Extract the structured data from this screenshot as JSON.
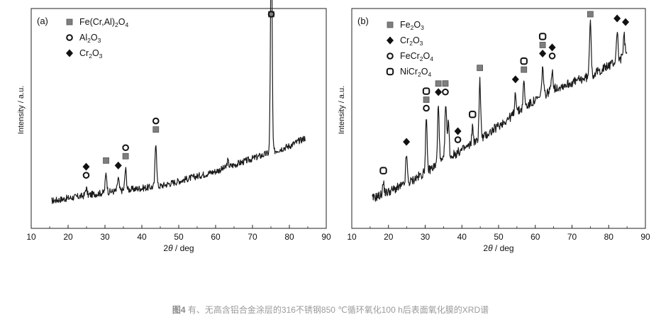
{
  "chart_data": [
    {
      "type": "line",
      "panel_label": "(a)",
      "xlabel_prefix": "2",
      "xlabel_theta": "θ",
      "xlabel_suffix": " / deg",
      "ylabel": "Intensity / a.u.",
      "xlim": [
        10,
        90
      ],
      "ylim": [
        0,
        100
      ],
      "x_ticks": [
        10,
        20,
        30,
        40,
        50,
        60,
        70,
        80,
        90
      ],
      "legend": [
        {
          "symbol": "square",
          "parts": [
            [
              "Fe(Cr,Al)",
              ""
            ],
            [
              "2",
              "sub"
            ],
            [
              "O",
              ""
            ],
            [
              "4",
              "sub"
            ]
          ]
        },
        {
          "symbol": "ring",
          "parts": [
            [
              "Al",
              ""
            ],
            [
              "2",
              "sub"
            ],
            [
              "O",
              ""
            ],
            [
              "3",
              "sub"
            ]
          ]
        },
        {
          "symbol": "diamond",
          "parts": [
            [
              "Cr",
              ""
            ],
            [
              "2",
              "sub"
            ],
            [
              "O",
              ""
            ],
            [
              "3",
              "sub"
            ]
          ]
        }
      ],
      "series": [
        {
          "name": "XRD pattern (a)",
          "x_start": 15.5,
          "x_end": 84.5,
          "baseline": [
            [
              15.5,
              11
            ],
            [
              30,
              15
            ],
            [
              45,
              18
            ],
            [
              60,
              25
            ],
            [
              70,
              31
            ],
            [
              80,
              37
            ],
            [
              84.5,
              41
            ]
          ],
          "noise_amplitude": 1.6,
          "peaks": [
            [
              24.9,
              3.5
            ],
            [
              30.3,
              9
            ],
            [
              33.6,
              6
            ],
            [
              35.6,
              10
            ],
            [
              43.8,
              21
            ],
            [
              63.3,
              3
            ],
            [
              75.1,
              106
            ]
          ]
        }
      ],
      "markers": [
        {
          "x": 24.9,
          "symbols": [
            "ring",
            "diamond"
          ]
        },
        {
          "x": 30.3,
          "symbols": [
            "square"
          ]
        },
        {
          "x": 33.6,
          "symbols": [
            "diamond"
          ]
        },
        {
          "x": 35.6,
          "symbols": [
            "square",
            "ring"
          ]
        },
        {
          "x": 43.8,
          "symbols": [
            "square",
            "ring"
          ]
        },
        {
          "x": 75.1,
          "symbols": [
            "square",
            "ring"
          ]
        }
      ]
    },
    {
      "type": "line",
      "panel_label": "(b)",
      "xlabel_prefix": "2",
      "xlabel_theta": "θ",
      "xlabel_suffix": " / deg",
      "ylabel": "Intensity / a.u.",
      "xlim": [
        10,
        90
      ],
      "ylim": [
        0,
        100
      ],
      "x_ticks": [
        10,
        20,
        30,
        40,
        50,
        60,
        70,
        80,
        90
      ],
      "legend": [
        {
          "symbol": "square",
          "parts": [
            [
              "Fe",
              ""
            ],
            [
              "2",
              "sub"
            ],
            [
              "O",
              ""
            ],
            [
              "3",
              "sub"
            ]
          ]
        },
        {
          "symbol": "diamond",
          "parts": [
            [
              "Cr",
              ""
            ],
            [
              "2",
              "sub"
            ],
            [
              "O",
              ""
            ],
            [
              "3",
              "sub"
            ]
          ]
        },
        {
          "symbol": "ring",
          "parts": [
            [
              "FeCr",
              ""
            ],
            [
              "2",
              "sub"
            ],
            [
              "O",
              ""
            ],
            [
              "4",
              "sub"
            ]
          ]
        },
        {
          "symbol": "square-ring",
          "parts": [
            [
              "NiCr",
              ""
            ],
            [
              "2",
              "sub"
            ],
            [
              "O",
              ""
            ],
            [
              "4",
              "sub"
            ]
          ]
        }
      ],
      "series": [
        {
          "name": "XRD pattern (b)",
          "x_start": 15.5,
          "x_end": 85,
          "baseline": [
            [
              15.5,
              12
            ],
            [
              25,
              19
            ],
            [
              35,
              30
            ],
            [
              45,
              40
            ],
            [
              55,
              53
            ],
            [
              65,
              64
            ],
            [
              75,
              70
            ],
            [
              80,
              75
            ],
            [
              85,
              80
            ]
          ],
          "noise_amplitude": 2.2,
          "peaks": [
            [
              18.6,
              5
            ],
            [
              24.9,
              14
            ],
            [
              30.3,
              24
            ],
            [
              33.6,
              28
            ],
            [
              35.6,
              26
            ],
            [
              36.3,
              18
            ],
            [
              42.9,
              8
            ],
            [
              44.9,
              28
            ],
            [
              54.6,
              10
            ],
            [
              56.9,
              12
            ],
            [
              62.0,
              14
            ],
            [
              64.6,
              10
            ],
            [
              75.0,
              28
            ],
            [
              82.3,
              14
            ],
            [
              84.2,
              10
            ]
          ]
        }
      ],
      "markers": [
        {
          "x": 18.6,
          "symbols": [
            "square-ring"
          ]
        },
        {
          "x": 24.9,
          "symbols": [
            "diamond"
          ]
        },
        {
          "x": 30.3,
          "symbols": [
            "ring",
            "square",
            "square-ring"
          ]
        },
        {
          "x": 33.6,
          "symbols": [
            "diamond",
            "square"
          ]
        },
        {
          "x": 35.5,
          "symbols": [
            "ring",
            "square"
          ]
        },
        {
          "x": 38.9,
          "symbols": [
            "ring",
            "diamond"
          ]
        },
        {
          "x": 42.9,
          "symbols": [
            "square-ring"
          ]
        },
        {
          "x": 44.9,
          "symbols": [
            "square"
          ]
        },
        {
          "x": 54.6,
          "symbols": [
            "diamond"
          ]
        },
        {
          "x": 56.9,
          "symbols": [
            "square",
            "square-ring"
          ]
        },
        {
          "x": 62.0,
          "symbols": [
            "diamond",
            "square",
            "square-ring"
          ]
        },
        {
          "x": 64.6,
          "symbols": [
            "ring",
            "diamond"
          ]
        },
        {
          "x": 75.0,
          "symbols": [
            "square"
          ]
        },
        {
          "x": 82.3,
          "symbols": [
            "diamond"
          ]
        },
        {
          "x": 84.6,
          "symbols": [
            "diamond"
          ]
        }
      ]
    }
  ],
  "caption": {
    "figure_no": "图4",
    "text": " 有、无高含铝合金涂层的316不锈钢850 ℃循环氧化100 h后表面氧化膜的XRD谱"
  },
  "colors": {
    "axis": "#222222",
    "trace": "#1a1a1a",
    "square_fill": "#7e7e7e",
    "diamond_fill": "#111111",
    "caption": "#9a9a9a"
  }
}
